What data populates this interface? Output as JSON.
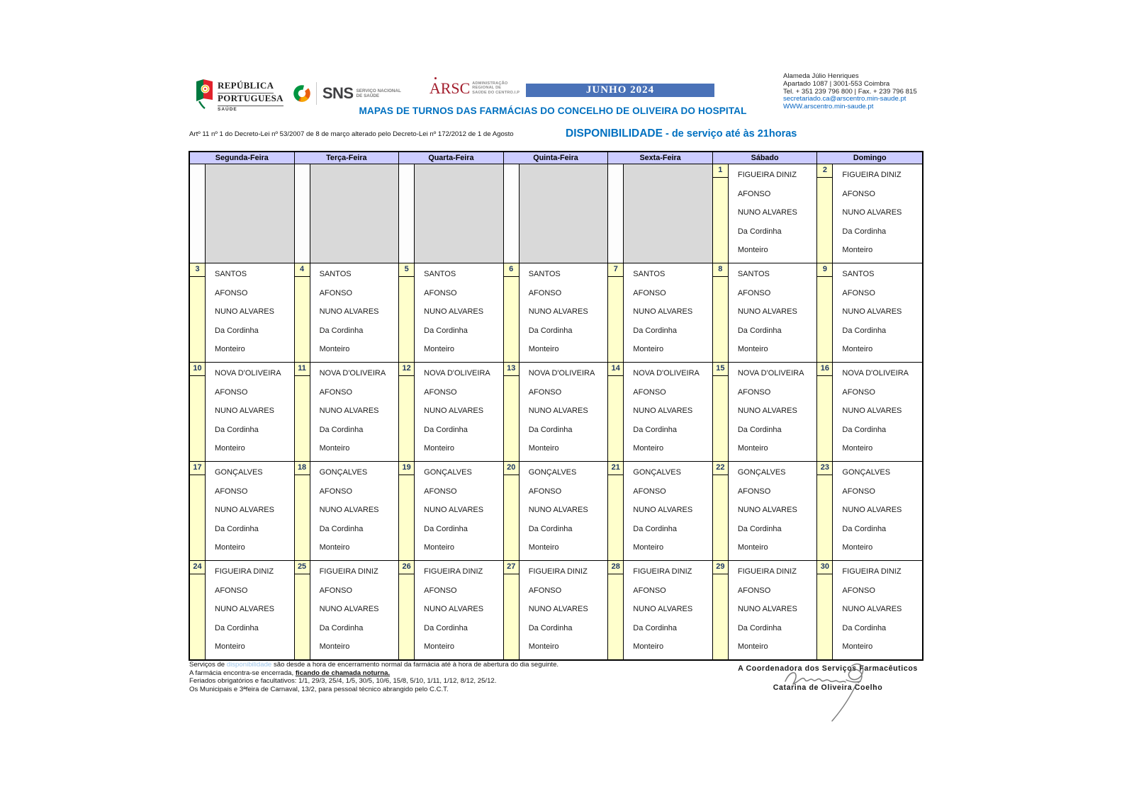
{
  "header": {
    "logos": {
      "republica": {
        "line1": "REPÚBLICA",
        "line2": "PORTUGUESA",
        "sub": "SAÚDE"
      },
      "sns": {
        "abbr": "SNS",
        "sub1": "SERVIÇO NACIONAL",
        "sub2": "DE SAÚDE"
      },
      "arsc": {
        "abbr": "ARSC",
        "sub1": "ADMINISTRAÇÃO",
        "sub2": "REGIONAL DE",
        "sub3": "SAÚDE DO CENTRO.I.P"
      }
    },
    "month_banner": "JUNHO 2024",
    "address": {
      "line1": "Alameda Júlio Henriques",
      "line2": "Apartado 1087 | 3001-553 Coimbra",
      "line3": "Tel. + 351 239 796 800 | Fax. + 239 796 815",
      "email": "secretariado.ca@arscentro.min-saude.pt",
      "website": "WWW.arscentro.min-saude.pt"
    },
    "title": "MAPAS DE TURNOS DAS FARMÁCIAS DO CONCELHO DE OLIVEIRA DO HOSPITAL",
    "legal": "Artº 11 nº 1 do Decreto-Lei nº 53/2007 de 8 de março alterado pelo Decreto-Lei nº 172/2012 de 1 de Agosto",
    "availability_title": "DISPONIBILIDADE",
    "availability_sub": "  - de serviço até às 21horas"
  },
  "calendar": {
    "weekdays": [
      "Segunda-Feira",
      "Terça-Feira",
      "Quarta-Feira",
      "Quinta-Feira",
      "Sexta-Feira",
      "Sábado",
      "Domingo"
    ],
    "weeks": [
      {
        "cells": [
          {
            "day": "",
            "pharmacies": []
          },
          {
            "day": "",
            "pharmacies": []
          },
          {
            "day": "",
            "pharmacies": []
          },
          {
            "day": "",
            "pharmacies": []
          },
          {
            "day": "",
            "pharmacies": []
          },
          {
            "day": "1",
            "pharmacies": [
              "FIGUEIRA DINIZ",
              "AFONSO",
              "NUNO ALVARES",
              "Da Cordinha",
              "Monteiro"
            ]
          },
          {
            "day": "2",
            "pharmacies": [
              "FIGUEIRA DINIZ",
              "AFONSO",
              "NUNO ALVARES",
              "Da Cordinha",
              "Monteiro"
            ]
          }
        ]
      },
      {
        "cells": [
          {
            "day": "3",
            "pharmacies": [
              "SANTOS",
              "AFONSO",
              "NUNO ALVARES",
              "Da Cordinha",
              "Monteiro"
            ]
          },
          {
            "day": "4",
            "pharmacies": [
              "SANTOS",
              "AFONSO",
              "NUNO ALVARES",
              "Da Cordinha",
              "Monteiro"
            ]
          },
          {
            "day": "5",
            "pharmacies": [
              "SANTOS",
              "AFONSO",
              "NUNO ALVARES",
              "Da Cordinha",
              "Monteiro"
            ]
          },
          {
            "day": "6",
            "pharmacies": [
              "SANTOS",
              "AFONSO",
              "NUNO ALVARES",
              "Da Cordinha",
              "Monteiro"
            ]
          },
          {
            "day": "7",
            "pharmacies": [
              "SANTOS",
              "AFONSO",
              "NUNO ALVARES",
              "Da Cordinha",
              "Monteiro"
            ]
          },
          {
            "day": "8",
            "pharmacies": [
              "SANTOS",
              "AFONSO",
              "NUNO ALVARES",
              "Da Cordinha",
              "Monteiro"
            ]
          },
          {
            "day": "9",
            "pharmacies": [
              "SANTOS",
              "AFONSO",
              "NUNO ALVARES",
              "Da Cordinha",
              "Monteiro"
            ]
          }
        ]
      },
      {
        "cells": [
          {
            "day": "10",
            "pharmacies": [
              "NOVA D'OLIVEIRA",
              "AFONSO",
              "NUNO ALVARES",
              "Da Cordinha",
              "Monteiro"
            ]
          },
          {
            "day": "11",
            "pharmacies": [
              "NOVA D'OLIVEIRA",
              "AFONSO",
              "NUNO ALVARES",
              "Da Cordinha",
              "Monteiro"
            ]
          },
          {
            "day": "12",
            "pharmacies": [
              "NOVA D'OLIVEIRA",
              "AFONSO",
              "NUNO ALVARES",
              "Da Cordinha",
              "Monteiro"
            ]
          },
          {
            "day": "13",
            "pharmacies": [
              "NOVA D'OLIVEIRA",
              "AFONSO",
              "NUNO ALVARES",
              "Da Cordinha",
              "Monteiro"
            ]
          },
          {
            "day": "14",
            "pharmacies": [
              "NOVA D'OLIVEIRA",
              "AFONSO",
              "NUNO ALVARES",
              "Da Cordinha",
              "Monteiro"
            ]
          },
          {
            "day": "15",
            "pharmacies": [
              "NOVA D'OLIVEIRA",
              "AFONSO",
              "NUNO ALVARES",
              "Da Cordinha",
              "Monteiro"
            ]
          },
          {
            "day": "16",
            "pharmacies": [
              "NOVA D'OLIVEIRA",
              "AFONSO",
              "NUNO ALVARES",
              "Da Cordinha",
              "Monteiro"
            ]
          }
        ]
      },
      {
        "cells": [
          {
            "day": "17",
            "pharmacies": [
              "GONÇALVES",
              "AFONSO",
              "NUNO ALVARES",
              "Da Cordinha",
              "Monteiro"
            ]
          },
          {
            "day": "18",
            "pharmacies": [
              "GONÇALVES",
              "AFONSO",
              "NUNO ALVARES",
              "Da Cordinha",
              "Monteiro"
            ]
          },
          {
            "day": "19",
            "pharmacies": [
              "GONÇALVES",
              "AFONSO",
              "NUNO ALVARES",
              "Da Cordinha",
              "Monteiro"
            ]
          },
          {
            "day": "20",
            "pharmacies": [
              "GONÇALVES",
              "AFONSO",
              "NUNO ALVARES",
              "Da Cordinha",
              "Monteiro"
            ]
          },
          {
            "day": "21",
            "pharmacies": [
              "GONÇALVES",
              "AFONSO",
              "NUNO ALVARES",
              "Da Cordinha",
              "Monteiro"
            ]
          },
          {
            "day": "22",
            "pharmacies": [
              "GONÇALVES",
              "AFONSO",
              "NUNO ALVARES",
              "Da Cordinha",
              "Monteiro"
            ]
          },
          {
            "day": "23",
            "pharmacies": [
              "GONÇALVES",
              "AFONSO",
              "NUNO ALVARES",
              "Da Cordinha",
              "Monteiro"
            ]
          }
        ]
      },
      {
        "cells": [
          {
            "day": "24",
            "pharmacies": [
              "FIGUEIRA DINIZ",
              "AFONSO",
              "NUNO ALVARES",
              "Da Cordinha",
              "Monteiro"
            ]
          },
          {
            "day": "25",
            "pharmacies": [
              "FIGUEIRA DINIZ",
              "AFONSO",
              "NUNO ALVARES",
              "Da Cordinha",
              "Monteiro"
            ]
          },
          {
            "day": "26",
            "pharmacies": [
              "FIGUEIRA DINIZ",
              "AFONSO",
              "NUNO ALVARES",
              "Da Cordinha",
              "Monteiro"
            ]
          },
          {
            "day": "27",
            "pharmacies": [
              "FIGUEIRA DINIZ",
              "AFONSO",
              "NUNO ALVARES",
              "Da Cordinha",
              "Monteiro"
            ]
          },
          {
            "day": "28",
            "pharmacies": [
              "FIGUEIRA DINIZ",
              "AFONSO",
              "NUNO ALVARES",
              "Da Cordinha",
              "Monteiro"
            ]
          },
          {
            "day": "29",
            "pharmacies": [
              "FIGUEIRA DINIZ",
              "AFONSO",
              "NUNO ALVARES",
              "Da Cordinha",
              "Monteiro"
            ]
          },
          {
            "day": "30",
            "pharmacies": [
              "FIGUEIRA DINIZ",
              "AFONSO",
              "NUNO ALVARES",
              "Da Cordinha",
              "Monteiro"
            ]
          }
        ]
      }
    ]
  },
  "footer": {
    "note1_pre": "Serviços de ",
    "note1_hl": "disponibilidade",
    "note1_post": " são desde a hora de encerramento normal da farmácia até à hora de abertura do dia seguinte.",
    "note2_pre": "A farmácia encontra-se encerrada, ",
    "note2_bold": "ficando de chamada noturna.",
    "note3": "Feriados obrigatórios e facultativos: 1/1, 29/3, 25/4, 1/5, 30/5, 10/6, 15/8, 5/10, 1/11, 1/12, 8/12, 25/12.",
    "note4": "Os Municipais e 3ªfeira de Carnaval, 13/2, para pessoal técnico abrangido pelo C.C.T."
  },
  "signature": {
    "role": "A Coordenadora dos Serviços Farmacêuticos",
    "name": "Catarina de Oliveira Coelho"
  },
  "colors": {
    "accent-blue": "#0070c0",
    "banner-blue": "#4a72b8",
    "lavender": "#ccccff",
    "pale-yellow": "#ffffcc",
    "cell-gray": "#d9d9d9",
    "navy": "#1f3864",
    "link-blue": "#0563c1",
    "hl-blue": "#9dc3e6",
    "logo-red": "#a21c2b"
  }
}
